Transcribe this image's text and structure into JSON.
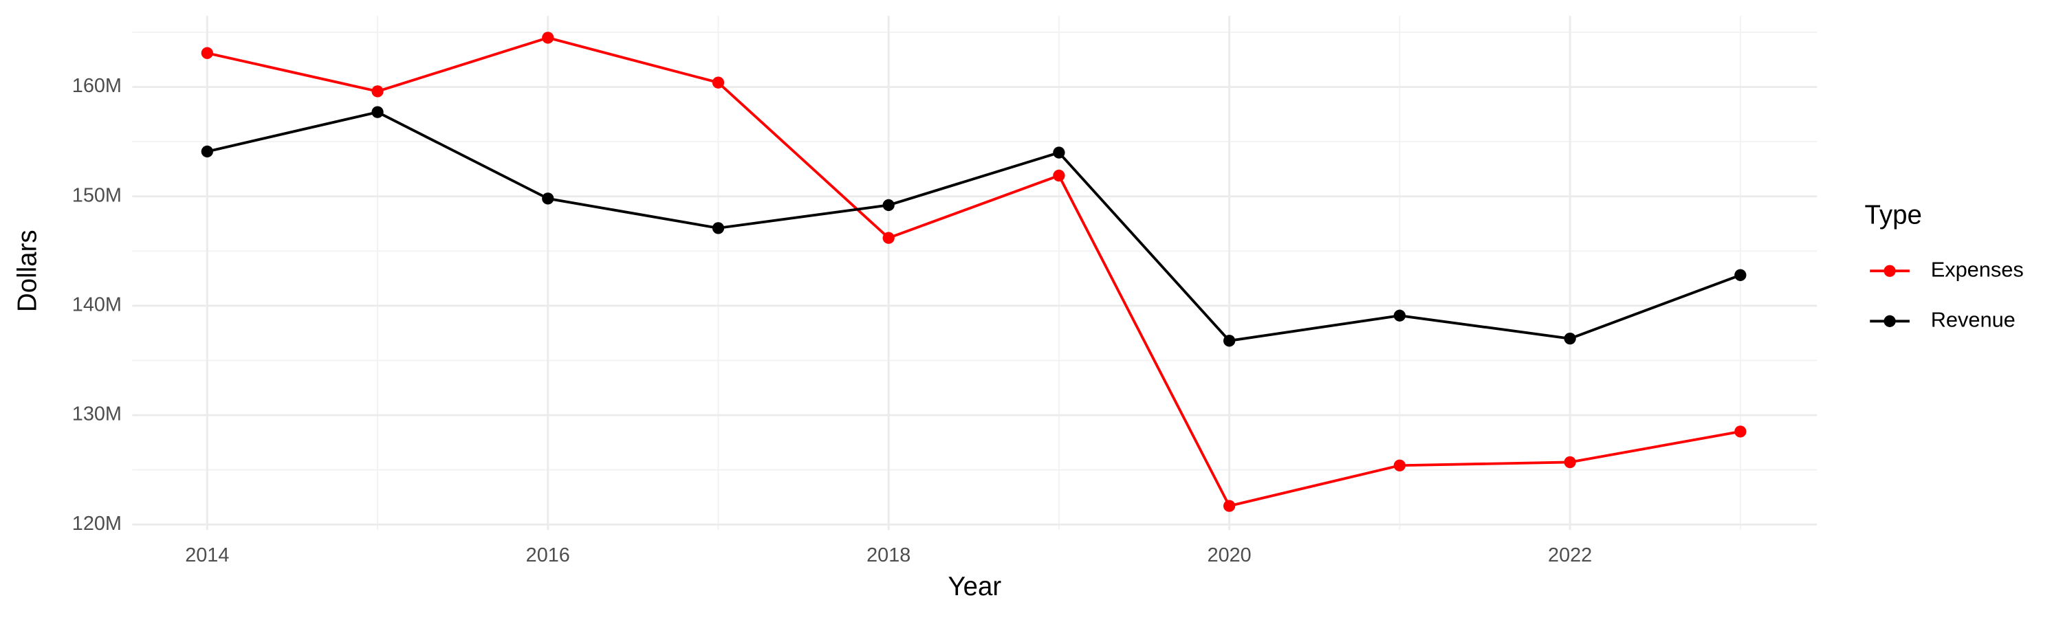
{
  "chart_data": {
    "type": "line",
    "x_label": "Year",
    "y_label": "Dollars",
    "legend_title": "Type",
    "x": [
      2014,
      2015,
      2016,
      2017,
      2018,
      2019,
      2020,
      2021,
      2022,
      2023
    ],
    "series": [
      {
        "name": "Expenses",
        "color": "#ff0000",
        "values": [
          163100000,
          159600000,
          164500000,
          160400000,
          146200000,
          151900000,
          121700000,
          125400000,
          125700000,
          128500000
        ]
      },
      {
        "name": "Revenue",
        "color": "#000000",
        "values": [
          154100000,
          157700000,
          149800000,
          147100000,
          149200000,
          154000000,
          136800000,
          139100000,
          137000000,
          142800000
        ]
      }
    ],
    "xlim": [
      2013.56,
      2023.45
    ],
    "xticks": [
      2014,
      2016,
      2018,
      2020,
      2022
    ],
    "ylim": [
      119500000,
      166500000
    ],
    "yticks": [
      {
        "value": 120000000,
        "label": "120M"
      },
      {
        "value": 130000000,
        "label": "130M"
      },
      {
        "value": 140000000,
        "label": "140M"
      },
      {
        "value": 150000000,
        "label": "150M"
      },
      {
        "value": 160000000,
        "label": "160M"
      }
    ],
    "grid": true,
    "legend": "right"
  }
}
